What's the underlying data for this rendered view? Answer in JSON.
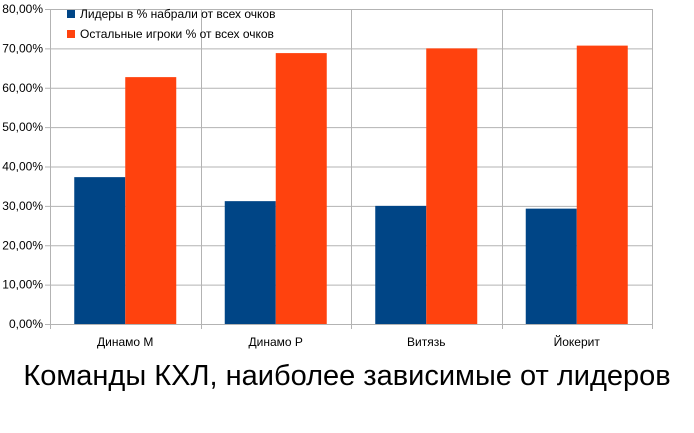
{
  "chart_data": {
    "type": "bar",
    "title": "Команды КХЛ, наиболее зависимые от лидеров",
    "categories": [
      "Динамо М",
      "Динамо Р",
      "Витязь",
      "Йокерит"
    ],
    "series": [
      {
        "name": "Лидеры в % набрали от всех очков",
        "color": "#004586",
        "values": [
          37.3,
          31.2,
          30.0,
          29.3
        ]
      },
      {
        "name": "Остальные игроки % от всех очков",
        "color": "#ff420e",
        "values": [
          62.7,
          68.8,
          70.0,
          70.7
        ]
      }
    ],
    "ylim": [
      0,
      80
    ],
    "yticks": [
      0,
      10,
      20,
      30,
      40,
      50,
      60,
      70,
      80
    ],
    "ytick_labels": [
      "0,00%",
      "10,00%",
      "20,00%",
      "30,00%",
      "40,00%",
      "50,00%",
      "60,00%",
      "70,00%",
      "80,00%"
    ],
    "grid": true,
    "legend_position": "top-left",
    "xlabel": "",
    "ylabel": ""
  }
}
